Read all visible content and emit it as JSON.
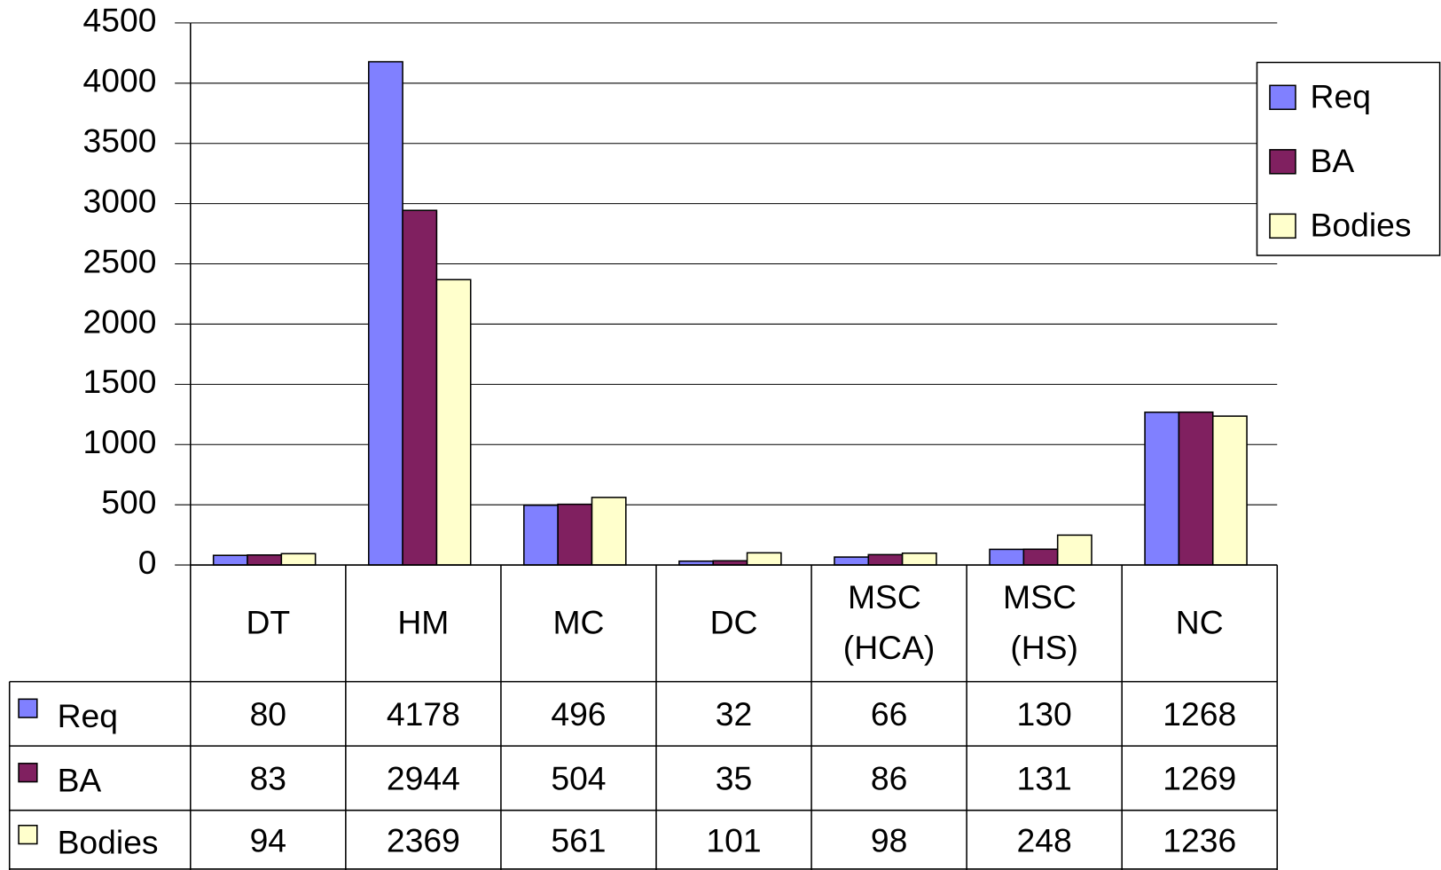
{
  "chart_data": {
    "type": "bar",
    "categories": [
      "DT",
      "HM",
      "MC",
      "DC",
      "MSC (HCA)",
      "MSC (HS)",
      "NC"
    ],
    "series": [
      {
        "name": "Req",
        "color": "#8080ff",
        "values": [
          80,
          4178,
          496,
          32,
          66,
          130,
          1268
        ]
      },
      {
        "name": "BA",
        "color": "#802060",
        "values": [
          83,
          2944,
          504,
          35,
          86,
          131,
          1269
        ]
      },
      {
        "name": "Bodies",
        "color": "#ffffcc",
        "values": [
          94,
          2369,
          561,
          101,
          98,
          248,
          1236
        ]
      }
    ],
    "ylim": [
      0,
      4500
    ],
    "yticks": [
      0,
      500,
      1000,
      1500,
      2000,
      2500,
      3000,
      3500,
      4000,
      4500
    ],
    "grid": true,
    "legend": "right",
    "data_table": true
  }
}
